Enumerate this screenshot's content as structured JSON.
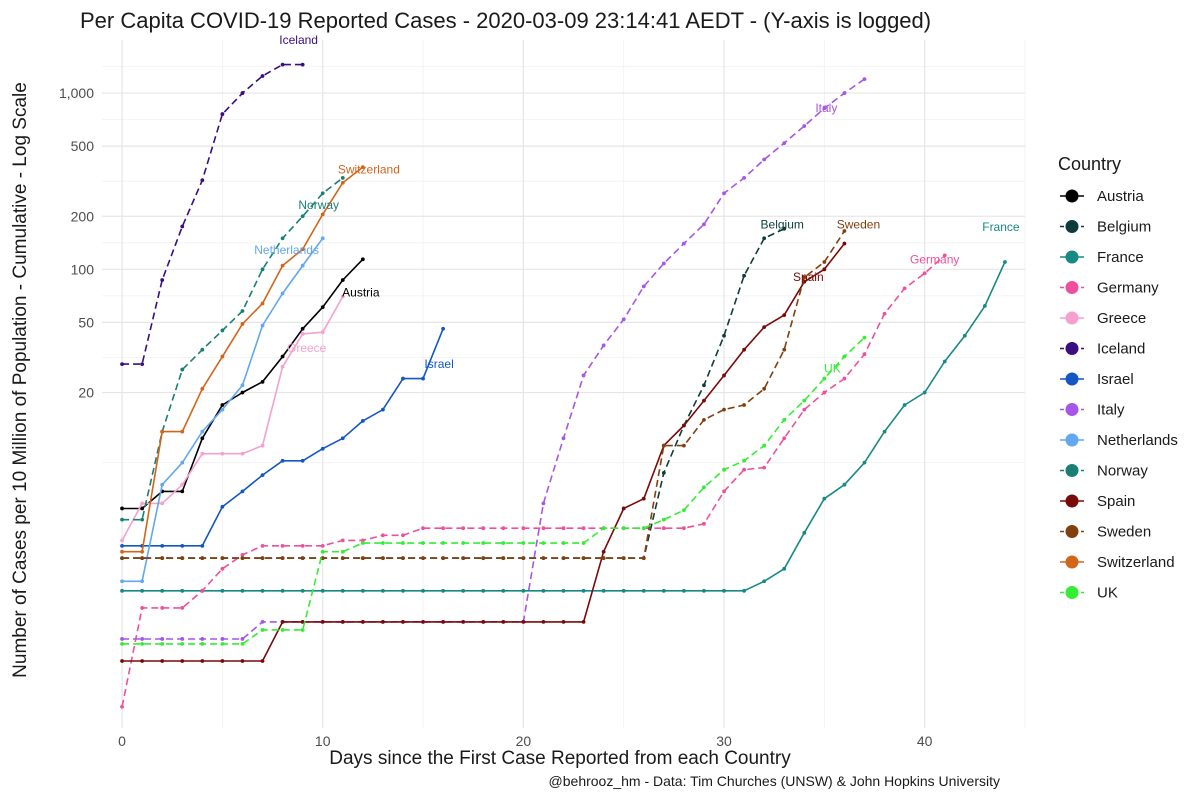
{
  "chart_data": {
    "type": "line",
    "title": "Per Capita COVID-19 Reported Cases - 2020-03-09 23:14:41 AEDT - (Y-axis is logged)",
    "xlabel": "Days since the First Case Reported from each Country",
    "ylabel": "Number of Cases per 10 Million of Population - Cumulative - Log Scale",
    "caption": "@behrooz_hm - Data: Tim Churches (UNSW) & John Hopkins University",
    "x_scale": "linear",
    "y_scale": "log10",
    "xlim": [
      -1,
      45
    ],
    "ylim": [
      0.25,
      2000
    ],
    "x_ticks": [
      0,
      10,
      20,
      30,
      40
    ],
    "y_ticks": [
      20,
      50,
      100,
      200,
      500,
      1000
    ],
    "y_tick_labels": [
      "20",
      "50",
      "100",
      "200",
      "500",
      "1,000"
    ],
    "grid": true,
    "legend": {
      "title": "Country",
      "position": "right"
    },
    "series": [
      {
        "name": "Austria",
        "color": "#000000",
        "dash": "solid",
        "x": [
          0,
          1,
          2,
          3,
          4,
          5,
          6,
          7,
          8,
          9,
          10,
          11,
          12
        ],
        "y": [
          4.4,
          4.4,
          5.5,
          5.5,
          11,
          17,
          20,
          23,
          32,
          46,
          61,
          87,
          114
        ]
      },
      {
        "name": "Belgium",
        "color": "#0d3d3b",
        "dash": "dashed",
        "x": [
          0,
          1,
          2,
          3,
          4,
          5,
          6,
          7,
          8,
          9,
          10,
          11,
          12,
          13,
          14,
          15,
          16,
          17,
          18,
          19,
          20,
          21,
          22,
          23,
          24,
          25,
          26,
          27,
          28,
          29,
          30,
          31,
          32,
          33
        ],
        "y": [
          2.3,
          2.3,
          2.3,
          2.3,
          2.3,
          2.3,
          2.3,
          2.3,
          2.3,
          2.3,
          2.3,
          2.3,
          2.3,
          2.3,
          2.3,
          2.3,
          2.3,
          2.3,
          2.3,
          2.3,
          2.3,
          2.3,
          2.3,
          2.3,
          2.3,
          2.3,
          2.3,
          7,
          13,
          22,
          42,
          92,
          150,
          170
        ]
      },
      {
        "name": "France",
        "color": "#178a85",
        "dash": "solid",
        "x": [
          0,
          1,
          2,
          3,
          4,
          5,
          6,
          7,
          8,
          9,
          10,
          11,
          12,
          13,
          14,
          15,
          16,
          17,
          18,
          19,
          20,
          21,
          22,
          23,
          24,
          25,
          26,
          27,
          28,
          29,
          30,
          31,
          32,
          33,
          34,
          35,
          36,
          37,
          38,
          39,
          40,
          41,
          42,
          43,
          44
        ],
        "y": [
          1.5,
          1.5,
          1.5,
          1.5,
          1.5,
          1.5,
          1.5,
          1.5,
          1.5,
          1.5,
          1.5,
          1.5,
          1.5,
          1.5,
          1.5,
          1.5,
          1.5,
          1.5,
          1.5,
          1.5,
          1.5,
          1.5,
          1.5,
          1.5,
          1.5,
          1.5,
          1.5,
          1.5,
          1.5,
          1.5,
          1.5,
          1.5,
          1.7,
          2,
          3.2,
          5,
          6,
          8,
          12,
          17,
          20,
          30,
          42,
          62,
          110
        ]
      },
      {
        "name": "Germany",
        "color": "#f0509a",
        "dash": "dashed",
        "x": [
          0,
          1,
          2,
          3,
          4,
          5,
          6,
          7,
          8,
          9,
          10,
          11,
          12,
          13,
          14,
          15,
          16,
          17,
          18,
          19,
          20,
          21,
          22,
          23,
          24,
          25,
          26,
          27,
          28,
          29,
          30,
          31,
          32,
          33,
          34,
          35,
          36,
          37,
          38,
          39,
          40,
          41
        ],
        "y": [
          0.33,
          1.2,
          1.2,
          1.2,
          1.5,
          2,
          2.4,
          2.7,
          2.7,
          2.7,
          2.7,
          2.9,
          2.9,
          3.1,
          3.1,
          3.4,
          3.4,
          3.4,
          3.4,
          3.4,
          3.4,
          3.4,
          3.4,
          3.4,
          3.4,
          3.4,
          3.4,
          3.4,
          3.4,
          3.6,
          5.5,
          7.3,
          7.5,
          11,
          16,
          20,
          24,
          33,
          56,
          78,
          95,
          120
        ]
      },
      {
        "name": "Greece",
        "color": "#f5a1cf",
        "dash": "solid",
        "x": [
          0,
          1,
          2,
          3,
          4,
          5,
          6,
          7,
          8,
          9,
          10,
          11
        ],
        "y": [
          2.9,
          4.7,
          4.7,
          6,
          9,
          9,
          9,
          10,
          28,
          43,
          44,
          70
        ]
      },
      {
        "name": "Iceland",
        "color": "#3a0d80",
        "dash": "dashed",
        "x": [
          0,
          1,
          2,
          3,
          4,
          5,
          6,
          7,
          8,
          9
        ],
        "y": [
          29,
          29,
          87,
          175,
          320,
          760,
          1000,
          1250,
          1450,
          1450
        ]
      },
      {
        "name": "Israel",
        "color": "#1357c4",
        "dash": "solid",
        "x": [
          0,
          1,
          2,
          3,
          4,
          5,
          6,
          7,
          8,
          9,
          10,
          11,
          12,
          13,
          14,
          15,
          16
        ],
        "y": [
          2.7,
          2.7,
          2.7,
          2.7,
          2.7,
          4.5,
          5.5,
          6.8,
          8.2,
          8.2,
          9.6,
          11,
          13.8,
          16,
          24,
          24,
          46
        ]
      },
      {
        "name": "Italy",
        "color": "#a656e8",
        "dash": "dashed",
        "x": [
          0,
          1,
          2,
          3,
          4,
          5,
          6,
          7,
          8,
          9,
          10,
          11,
          12,
          13,
          14,
          15,
          16,
          17,
          18,
          19,
          20,
          21,
          22,
          23,
          24,
          25,
          26,
          27,
          28,
          29,
          30,
          31,
          32,
          33,
          34,
          35,
          36,
          37
        ],
        "y": [
          0.8,
          0.8,
          0.8,
          0.8,
          0.8,
          0.8,
          0.8,
          1.0,
          1.0,
          1.0,
          1.0,
          1.0,
          1.0,
          1.0,
          1.0,
          1.0,
          1.0,
          1.0,
          1.0,
          1.0,
          1.0,
          4.7,
          11,
          25,
          37,
          52,
          80,
          108,
          140,
          180,
          270,
          330,
          420,
          520,
          650,
          820,
          1000,
          1200
        ]
      },
      {
        "name": "Netherlands",
        "color": "#62a7ef",
        "dash": "solid",
        "x": [
          0,
          1,
          2,
          3,
          4,
          5,
          6,
          7,
          8,
          9,
          10
        ],
        "y": [
          1.7,
          1.7,
          6,
          8,
          12,
          16,
          22,
          48,
          73,
          105,
          150
        ]
      },
      {
        "name": "Norway",
        "color": "#1a7f73",
        "dash": "dashed",
        "x": [
          0,
          1,
          2,
          3,
          4,
          5,
          6,
          7,
          8,
          9,
          10,
          11
        ],
        "y": [
          3.8,
          3.8,
          12,
          27,
          35,
          45,
          58,
          100,
          150,
          200,
          270,
          330
        ]
      },
      {
        "name": "Spain",
        "color": "#7a0a0a",
        "dash": "solid",
        "x": [
          0,
          1,
          2,
          3,
          4,
          5,
          6,
          7,
          8,
          9,
          10,
          11,
          12,
          13,
          14,
          15,
          16,
          17,
          18,
          19,
          20,
          21,
          22,
          23,
          24,
          25,
          26,
          27,
          28,
          29,
          30,
          31,
          32,
          33,
          34,
          35,
          36
        ],
        "y": [
          0.6,
          0.6,
          0.6,
          0.6,
          0.6,
          0.6,
          0.6,
          0.6,
          1.0,
          1.0,
          1.0,
          1.0,
          1.0,
          1.0,
          1.0,
          1.0,
          1.0,
          1.0,
          1.0,
          1.0,
          1.0,
          1.0,
          1.0,
          1.0,
          2.5,
          4.4,
          5,
          10,
          13,
          18,
          25,
          35,
          47,
          55,
          85,
          100,
          140
        ]
      },
      {
        "name": "Sweden",
        "color": "#82400e",
        "dash": "dashed",
        "x": [
          0,
          1,
          2,
          3,
          4,
          5,
          6,
          7,
          8,
          9,
          10,
          11,
          12,
          13,
          14,
          15,
          16,
          17,
          18,
          19,
          20,
          21,
          22,
          23,
          24,
          25,
          26,
          27,
          28,
          29,
          30,
          31,
          32,
          33,
          34,
          35,
          36
        ],
        "y": [
          2.3,
          2.3,
          2.3,
          2.3,
          2.3,
          2.3,
          2.3,
          2.3,
          2.3,
          2.3,
          2.3,
          2.3,
          2.3,
          2.3,
          2.3,
          2.3,
          2.3,
          2.3,
          2.3,
          2.3,
          2.3,
          2.3,
          2.3,
          2.3,
          2.3,
          2.3,
          2.3,
          10,
          10,
          14,
          16,
          17,
          21,
          35,
          90,
          110,
          165
        ]
      },
      {
        "name": "Switzerland",
        "color": "#d2651c",
        "dash": "solid",
        "x": [
          0,
          1,
          2,
          3,
          4,
          5,
          6,
          7,
          8,
          9,
          10,
          11,
          12
        ],
        "y": [
          2.5,
          2.5,
          12,
          12,
          21,
          32,
          49,
          64,
          105,
          130,
          205,
          310,
          380
        ]
      },
      {
        "name": "UK",
        "color": "#33ee33",
        "dash": "dashed",
        "x": [
          0,
          1,
          2,
          3,
          4,
          5,
          6,
          7,
          8,
          9,
          10,
          11,
          12,
          13,
          14,
          15,
          16,
          17,
          18,
          19,
          20,
          21,
          22,
          23,
          24,
          25,
          26,
          27,
          28,
          29,
          30,
          31,
          32,
          33,
          34,
          35,
          36,
          37
        ],
        "y": [
          0.75,
          0.75,
          0.75,
          0.75,
          0.75,
          0.75,
          0.75,
          0.9,
          0.9,
          0.9,
          2.5,
          2.5,
          2.8,
          2.8,
          2.8,
          2.8,
          2.8,
          2.8,
          2.8,
          2.8,
          2.8,
          2.8,
          2.8,
          2.8,
          3.4,
          3.4,
          3.4,
          3.8,
          4.3,
          5.8,
          7.3,
          8.2,
          10,
          14,
          18,
          24,
          32,
          41
        ]
      }
    ],
    "annotations": [
      {
        "text": "Iceland",
        "series": "Iceland",
        "x": 8.8,
        "y": 1900
      },
      {
        "text": "Switzerland",
        "series": "Switzerland",
        "x": 12.3,
        "y": 350
      },
      {
        "text": "Norway",
        "series": "Norway",
        "x": 9.8,
        "y": 220
      },
      {
        "text": "Netherlands",
        "series": "Netherlands",
        "x": 8.2,
        "y": 122
      },
      {
        "text": "Austria",
        "series": "Austria",
        "x": 11.9,
        "y": 70
      },
      {
        "text": "Greece",
        "series": "Greece",
        "x": 9.2,
        "y": 34
      },
      {
        "text": "Israel",
        "series": "Israel",
        "x": 15.8,
        "y": 27.5
      },
      {
        "text": "Italy",
        "series": "Italy",
        "x": 35.1,
        "y": 780
      },
      {
        "text": "Belgium",
        "series": "Belgium",
        "x": 32.9,
        "y": 170
      },
      {
        "text": "Sweden",
        "series": "Sweden",
        "x": 36.7,
        "y": 170
      },
      {
        "text": "France",
        "series": "France",
        "x": 43.8,
        "y": 165
      },
      {
        "text": "Germany",
        "series": "Germany",
        "x": 40.5,
        "y": 108
      },
      {
        "text": "Spain",
        "series": "Spain",
        "x": 34.2,
        "y": 86
      },
      {
        "text": "UK",
        "series": "UK",
        "x": 35.4,
        "y": 26
      }
    ]
  }
}
